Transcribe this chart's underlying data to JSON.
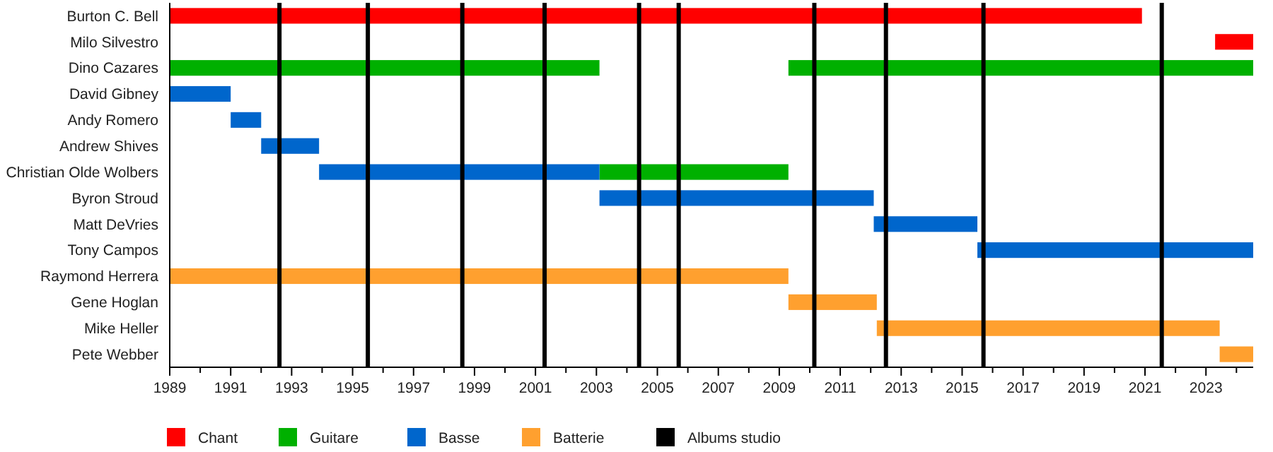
{
  "chart_data": {
    "type": "bar",
    "orientation": "horizontal",
    "legend": "bottom",
    "categories": [
      "Burton C. Bell",
      "Milo Silvestro",
      "Dino Cazares",
      "David Gibney",
      "Andy Romero",
      "Andrew Shives",
      "Christian Olde Wolbers",
      "Byron Stroud",
      "Matt DeVries",
      "Tony Campos",
      "Raymond Herrera",
      "Gene Hoglan",
      "Mike Heller",
      "Pete Webber"
    ],
    "xlim": [
      1989,
      2024.55
    ],
    "xticks": [
      1989,
      {
        "value": 1990,
        "label": null
      },
      1991,
      {
        "value": 1992,
        "label": null
      },
      1993,
      {
        "value": 1994,
        "label": null
      },
      1995,
      {
        "value": 1996,
        "label": null
      },
      1997,
      {
        "value": 1998,
        "label": null
      },
      1999,
      {
        "value": 2000,
        "label": null
      },
      2001,
      {
        "value": 2002,
        "label": null
      },
      2003,
      {
        "value": 2004,
        "label": null
      },
      2005,
      {
        "value": 2006,
        "label": null
      },
      2007,
      {
        "value": 2008,
        "label": null
      },
      2009,
      {
        "value": 2010,
        "label": null
      },
      2011,
      {
        "value": 2012,
        "label": null
      },
      2013,
      {
        "value": 2014,
        "label": null
      },
      2015,
      {
        "value": 2016,
        "label": null
      },
      2017,
      {
        "value": 2018,
        "label": null
      },
      2019,
      {
        "value": 2020,
        "label": null
      },
      2021,
      {
        "value": 2022,
        "label": null
      },
      2023,
      {
        "value": 2024,
        "label": null
      }
    ],
    "series": [
      {
        "name": "Chant",
        "color": "#ff0000",
        "base": [
          1989,
          2023.3,
          null,
          null,
          null,
          null,
          null,
          null,
          null,
          null,
          null,
          null,
          null,
          null
        ],
        "values": [
          31.9,
          1.25,
          null,
          null,
          null,
          null,
          null,
          null,
          null,
          null,
          null,
          null,
          null,
          null
        ]
      },
      {
        "name": "Guitare",
        "color": "#00b000",
        "base": [
          null,
          null,
          1989,
          null,
          null,
          null,
          2003.1,
          null,
          null,
          null,
          null,
          null,
          null,
          null
        ],
        "values": [
          null,
          null,
          14.1,
          null,
          null,
          null,
          6.2,
          null,
          null,
          null,
          null,
          null,
          null,
          null
        ]
      },
      {
        "color": "#00b000",
        "base": [
          null,
          null,
          2009.3,
          null,
          null,
          null,
          null,
          null,
          null,
          null,
          null,
          null,
          null,
          null
        ],
        "values": [
          null,
          null,
          15.25,
          null,
          null,
          null,
          null,
          null,
          null,
          null,
          null,
          null,
          null,
          null
        ]
      },
      {
        "name": "Basse",
        "color": "#0066cc",
        "base": [
          null,
          null,
          null,
          1989,
          1991,
          1992,
          1993.9,
          2003.1,
          2012.1,
          2015.5,
          null,
          null,
          null,
          null
        ],
        "values": [
          null,
          null,
          null,
          2,
          1,
          1.9,
          9.2,
          9,
          3.4,
          9.05,
          null,
          null,
          null,
          null
        ]
      },
      {
        "name": "Batterie",
        "color": "#ffa02f",
        "base": [
          null,
          null,
          null,
          null,
          null,
          null,
          null,
          null,
          null,
          null,
          1989,
          2009.3,
          2012.2,
          2023.45
        ],
        "values": [
          null,
          null,
          null,
          null,
          null,
          null,
          null,
          null,
          null,
          null,
          20.3,
          2.9,
          11.25,
          1.1
        ]
      }
    ],
    "ref_lines": [
      {
        "axis": "x",
        "value": 1992.6,
        "label": "Albums studio",
        "color": "#000000"
      },
      {
        "axis": "x",
        "value": 1995.5,
        "color": "#000000"
      },
      {
        "axis": "x",
        "value": 1998.6,
        "color": "#000000"
      },
      {
        "axis": "x",
        "value": 2001.3,
        "color": "#000000"
      },
      {
        "axis": "x",
        "value": 2004.4,
        "color": "#000000"
      },
      {
        "axis": "x",
        "value": 2005.7,
        "color": "#000000"
      },
      {
        "axis": "x",
        "value": 2010.15,
        "color": "#000000"
      },
      {
        "axis": "x",
        "value": 2012.5,
        "color": "#000000"
      },
      {
        "axis": "x",
        "value": 2015.7,
        "color": "#000000"
      },
      {
        "axis": "x",
        "value": 2021.55,
        "color": "#000000"
      }
    ]
  }
}
